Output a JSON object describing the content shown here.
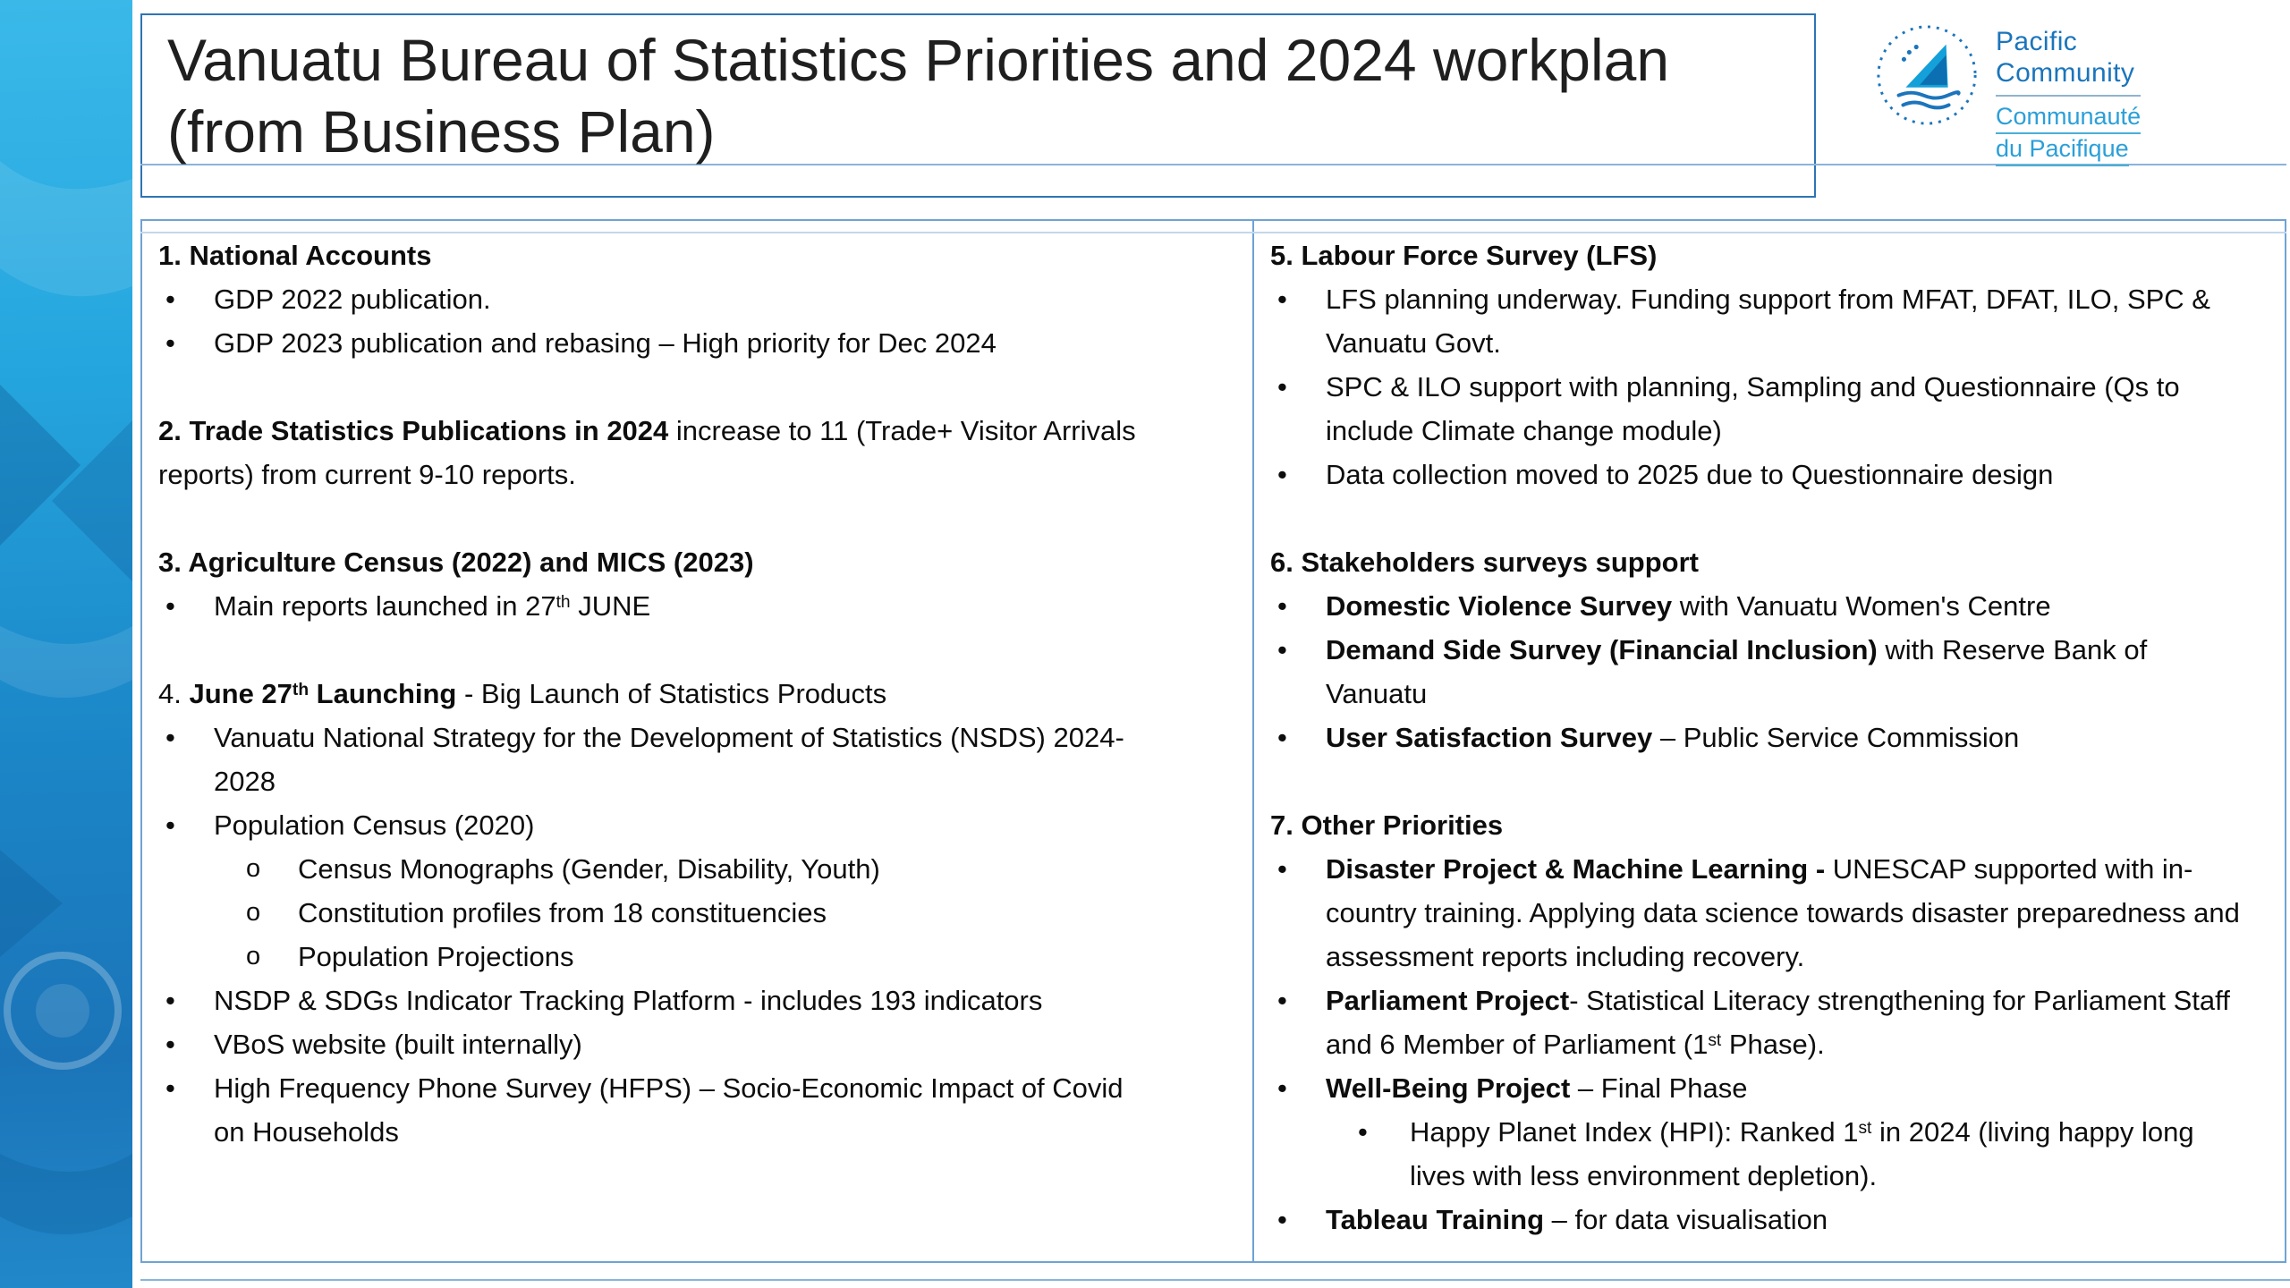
{
  "slide": {
    "title": "Vanuatu Bureau of Statistics Priorities and 2024 workplan (from Business Plan)"
  },
  "logo": {
    "icon": "spc-sail-logo",
    "english": [
      "Pacific",
      "Community"
    ],
    "french": [
      "Communauté",
      "du Pacifique"
    ],
    "color_primary": "#1b75bc",
    "color_secondary": "#2b9fd8"
  },
  "colors": {
    "band_top": "#3ab9e9",
    "band_bottom": "#1b74b8",
    "title_border": "#2e74b5",
    "table_border": "#6fa3d4",
    "text": "#0d0d0d"
  },
  "columns": {
    "left": [
      {
        "type": "heading",
        "seg": [
          {
            "t": "1. National Accounts",
            "b": true
          }
        ]
      },
      {
        "type": "bullet",
        "lvl": 1,
        "seg": [
          {
            "t": "GDP 2022 publication."
          }
        ]
      },
      {
        "type": "bullet",
        "lvl": 1,
        "seg": [
          {
            "t": "GDP 2023 publication and rebasing – High priority for Dec 2024"
          }
        ]
      },
      {
        "type": "spacer"
      },
      {
        "type": "para",
        "seg": [
          {
            "t": "2. Trade Statistics Publications in 2024",
            "b": true
          },
          {
            "t": " increase to 11 (Trade+ Visitor Arrivals reports) from current 9-10 reports."
          }
        ]
      },
      {
        "type": "spacer"
      },
      {
        "type": "heading",
        "seg": [
          {
            "t": "3. Agriculture Census (2022) and MICS (2023)",
            "b": true
          }
        ]
      },
      {
        "type": "bullet",
        "lvl": 1,
        "seg": [
          {
            "t": " Main reports launched in 27"
          },
          {
            "t": "th",
            "sup": true
          },
          {
            "t": " JUNE"
          }
        ]
      },
      {
        "type": "spacer"
      },
      {
        "type": "para",
        "seg": [
          {
            "t": "4. "
          },
          {
            "t": "June 27",
            "b": true
          },
          {
            "t": "th",
            "b": true,
            "sup": true
          },
          {
            "t": " Launching",
            "b": true
          },
          {
            "t": " - Big Launch of Statistics Products"
          }
        ]
      },
      {
        "type": "bullet",
        "lvl": 1,
        "seg": [
          {
            "t": "Vanuatu National Strategy for the Development of Statistics (NSDS) 2024-2028"
          }
        ]
      },
      {
        "type": "bullet",
        "lvl": 1,
        "seg": [
          {
            "t": "Population Census (2020)"
          }
        ]
      },
      {
        "type": "bullet",
        "lvl": 2,
        "mark": "circle",
        "seg": [
          {
            "t": "Census Monographs (Gender, Disability, Youth)"
          }
        ]
      },
      {
        "type": "bullet",
        "lvl": 2,
        "mark": "circle",
        "seg": [
          {
            "t": "Constitution profiles from 18 constituencies"
          }
        ]
      },
      {
        "type": "bullet",
        "lvl": 2,
        "mark": "circle",
        "seg": [
          {
            "t": "Population Projections"
          }
        ]
      },
      {
        "type": "bullet",
        "lvl": 1,
        "seg": [
          {
            "t": "NSDP & SDGs Indicator Tracking Platform - includes 193 indicators"
          }
        ]
      },
      {
        "type": "bullet",
        "lvl": 1,
        "seg": [
          {
            "t": "VBoS website (built internally)"
          }
        ]
      },
      {
        "type": "bullet",
        "lvl": 1,
        "seg": [
          {
            "t": "High Frequency Phone Survey (HFPS) – Socio-Economic Impact of Covid on Households"
          }
        ]
      }
    ],
    "right": [
      {
        "type": "heading",
        "seg": [
          {
            "t": "5. Labour Force Survey (LFS)",
            "b": true
          }
        ]
      },
      {
        "type": "bullet",
        "lvl": 1,
        "seg": [
          {
            "t": "LFS planning underway. Funding support from MFAT, DFAT, ILO, SPC & Vanuatu Govt."
          }
        ]
      },
      {
        "type": "bullet",
        "lvl": 1,
        "seg": [
          {
            "t": "SPC & ILO support with planning, Sampling and Questionnaire (Qs to include Climate change module)"
          }
        ]
      },
      {
        "type": "bullet",
        "lvl": 1,
        "seg": [
          {
            "t": "Data collection moved to 2025 due to Questionnaire design"
          }
        ]
      },
      {
        "type": "spacer"
      },
      {
        "type": "heading",
        "seg": [
          {
            "t": "6. Stakeholders surveys support",
            "b": true
          }
        ]
      },
      {
        "type": "bullet",
        "lvl": 1,
        "seg": [
          {
            "t": "Domestic Violence Survey",
            "b": true
          },
          {
            "t": " with Vanuatu Women's Centre"
          }
        ]
      },
      {
        "type": "bullet",
        "lvl": 1,
        "seg": [
          {
            "t": "Demand Side Survey (Financial Inclusion)",
            "b": true
          },
          {
            "t": " with Reserve Bank of Vanuatu"
          }
        ]
      },
      {
        "type": "bullet",
        "lvl": 1,
        "seg": [
          {
            "t": "User Satisfaction Survey",
            "b": true
          },
          {
            "t": " – Public Service Commission"
          }
        ]
      },
      {
        "type": "spacer"
      },
      {
        "type": "heading",
        "seg": [
          {
            "t": "7. Other Priorities",
            "b": true
          }
        ]
      },
      {
        "type": "bullet",
        "lvl": 1,
        "seg": [
          {
            "t": "Disaster Project & Machine Learning - ",
            "b": true
          },
          {
            "t": "UNESCAP supported with in-country training. Applying data science towards disaster preparedness and assessment reports including recovery."
          }
        ]
      },
      {
        "type": "bullet",
        "lvl": 1,
        "seg": [
          {
            "t": "Parliament Project",
            "b": true
          },
          {
            "t": "- Statistical Literacy strengthening for Parliament Staff and 6 Member of Parliament (1"
          },
          {
            "t": "st",
            "sup": true
          },
          {
            "t": " Phase)."
          }
        ]
      },
      {
        "type": "bullet",
        "lvl": 1,
        "seg": [
          {
            "t": "Well-Being Project",
            "b": true
          },
          {
            "t": " – Final Phase"
          }
        ]
      },
      {
        "type": "bullet",
        "lvl": 2,
        "mark": "disc",
        "seg": [
          {
            "t": "Happy Planet Index (HPI): Ranked 1"
          },
          {
            "t": "st",
            "sup": true
          },
          {
            "t": " in 2024 (living happy long lives with less environment depletion)."
          }
        ]
      },
      {
        "type": "bullet",
        "lvl": 1,
        "seg": [
          {
            "t": "Tableau Training",
            "b": true
          },
          {
            "t": " – for data visualisation"
          }
        ]
      }
    ]
  }
}
